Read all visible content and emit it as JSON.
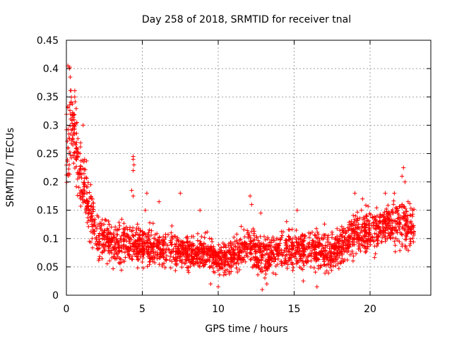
{
  "chart_data": {
    "type": "scatter",
    "title": "Day 258 of 2018, SRMTID for receiver tnal",
    "xlabel": "GPS time / hours",
    "ylabel": "SRMTID / TECUs",
    "xlim": [
      0,
      24
    ],
    "ylim": [
      0,
      0.45
    ],
    "x_ticks": [
      0,
      5,
      10,
      15,
      20
    ],
    "x_tick_labels": [
      "0",
      "5",
      "10",
      "15",
      "20"
    ],
    "y_ticks": [
      0,
      0.05,
      0.1,
      0.15,
      0.2,
      0.25,
      0.3,
      0.35,
      0.4,
      0.45
    ],
    "y_tick_labels": [
      "0",
      "0.05",
      "0.1",
      "0.15",
      "0.2",
      "0.25",
      "0.3",
      "0.35",
      "0.4",
      "0.45"
    ],
    "grid": true,
    "marker": "+",
    "marker_color": "#ff0000",
    "x_range": [
      0,
      22.9
    ],
    "trend": [
      {
        "x": 0.0,
        "y": 0.25,
        "spread": 0.07
      },
      {
        "x": 0.3,
        "y": 0.32,
        "spread": 0.07
      },
      {
        "x": 0.6,
        "y": 0.27,
        "spread": 0.06
      },
      {
        "x": 1.0,
        "y": 0.2,
        "spread": 0.05
      },
      {
        "x": 1.5,
        "y": 0.15,
        "spread": 0.04
      },
      {
        "x": 2.0,
        "y": 0.11,
        "spread": 0.035
      },
      {
        "x": 3.0,
        "y": 0.09,
        "spread": 0.03
      },
      {
        "x": 4.0,
        "y": 0.09,
        "spread": 0.03
      },
      {
        "x": 5.0,
        "y": 0.09,
        "spread": 0.03
      },
      {
        "x": 6.0,
        "y": 0.085,
        "spread": 0.03
      },
      {
        "x": 7.0,
        "y": 0.08,
        "spread": 0.03
      },
      {
        "x": 8.0,
        "y": 0.075,
        "spread": 0.025
      },
      {
        "x": 9.0,
        "y": 0.075,
        "spread": 0.025
      },
      {
        "x": 10.0,
        "y": 0.065,
        "spread": 0.025
      },
      {
        "x": 11.0,
        "y": 0.07,
        "spread": 0.025
      },
      {
        "x": 12.0,
        "y": 0.09,
        "spread": 0.03
      },
      {
        "x": 13.0,
        "y": 0.07,
        "spread": 0.03
      },
      {
        "x": 14.0,
        "y": 0.075,
        "spread": 0.03
      },
      {
        "x": 15.0,
        "y": 0.08,
        "spread": 0.03
      },
      {
        "x": 16.0,
        "y": 0.085,
        "spread": 0.03
      },
      {
        "x": 17.0,
        "y": 0.075,
        "spread": 0.03
      },
      {
        "x": 18.0,
        "y": 0.08,
        "spread": 0.03
      },
      {
        "x": 19.0,
        "y": 0.11,
        "spread": 0.035
      },
      {
        "x": 20.0,
        "y": 0.11,
        "spread": 0.035
      },
      {
        "x": 21.0,
        "y": 0.12,
        "spread": 0.035
      },
      {
        "x": 22.0,
        "y": 0.13,
        "spread": 0.04
      },
      {
        "x": 22.9,
        "y": 0.11,
        "spread": 0.035
      }
    ],
    "outliers": [
      [
        0.1,
        0.405
      ],
      [
        0.2,
        0.4
      ],
      [
        0.25,
        0.385
      ],
      [
        0.55,
        0.35
      ],
      [
        0.3,
        0.34
      ],
      [
        1.1,
        0.3
      ],
      [
        0.9,
        0.25
      ],
      [
        1.2,
        0.24
      ],
      [
        1.6,
        0.195
      ],
      [
        4.4,
        0.245
      ],
      [
        4.4,
        0.24
      ],
      [
        4.45,
        0.23
      ],
      [
        4.4,
        0.22
      ],
      [
        4.3,
        0.185
      ],
      [
        4.4,
        0.175
      ],
      [
        5.3,
        0.18
      ],
      [
        5.2,
        0.15
      ],
      [
        6.1,
        0.165
      ],
      [
        7.5,
        0.18
      ],
      [
        8.8,
        0.15
      ],
      [
        12.1,
        0.175
      ],
      [
        12.2,
        0.16
      ],
      [
        12.8,
        0.145
      ],
      [
        14.5,
        0.13
      ],
      [
        15.2,
        0.15
      ],
      [
        19.0,
        0.18
      ],
      [
        19.5,
        0.17
      ],
      [
        21.0,
        0.18
      ],
      [
        21.6,
        0.18
      ],
      [
        22.2,
        0.225
      ],
      [
        22.1,
        0.21
      ],
      [
        22.3,
        0.2
      ],
      [
        22.5,
        0.165
      ],
      [
        22.8,
        0.15
      ],
      [
        10.0,
        0.015
      ],
      [
        12.9,
        0.01
      ],
      [
        16.5,
        0.015
      ],
      [
        15.6,
        0.025
      ],
      [
        9.5,
        0.02
      ],
      [
        13.2,
        0.02
      ]
    ],
    "n_points": 2500
  }
}
